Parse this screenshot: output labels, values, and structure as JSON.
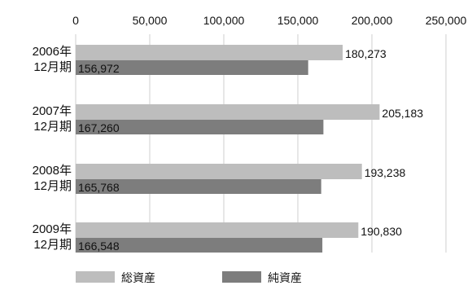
{
  "chart_data": {
    "type": "bar",
    "orientation": "horizontal",
    "title": "",
    "xlabel": "",
    "ylabel": "",
    "xlim": [
      0,
      250000
    ],
    "x_ticks": [
      "0",
      "50,000",
      "100,000",
      "150,000",
      "200,000",
      "250,000"
    ],
    "x_axis_position": "top",
    "grid": true,
    "legend_position": "bottom-left",
    "categories": [
      [
        "2006年",
        "12月期"
      ],
      [
        "2007年",
        "12月期"
      ],
      [
        "2008年",
        "12月期"
      ],
      [
        "2009年",
        "12月期"
      ]
    ],
    "series": [
      {
        "name": "総資産",
        "color": "#bdbdbd",
        "values": [
          180273,
          205183,
          193238,
          190830
        ],
        "labels": [
          "180,273",
          "205,183",
          "193,238",
          "190,830"
        ],
        "label_position": "outside-end"
      },
      {
        "name": "純資産",
        "color": "#7d7d7d",
        "values": [
          156972,
          167260,
          165768,
          166548
        ],
        "labels": [
          "156,972",
          "167,260",
          "165,768",
          "166,548"
        ],
        "label_position": "inside-base"
      }
    ]
  }
}
